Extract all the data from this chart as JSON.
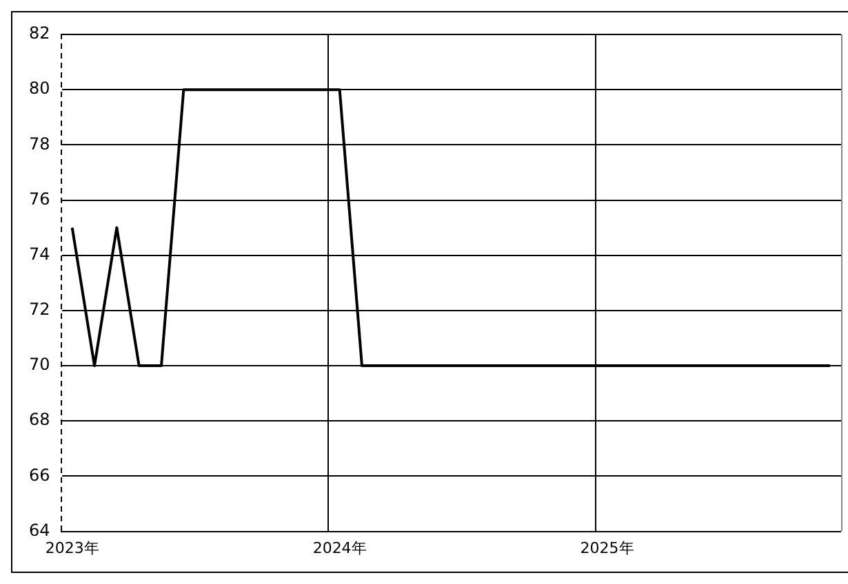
{
  "chart_data": {
    "type": "line",
    "categories": [
      "2023年",
      null,
      null,
      null,
      null,
      null,
      null,
      null,
      null,
      null,
      null,
      null,
      "2024年",
      null,
      null,
      null,
      null,
      null,
      null,
      null,
      null,
      null,
      null,
      null,
      "2025年",
      null,
      null,
      null,
      null,
      null,
      null,
      null,
      null,
      null,
      null
    ],
    "series": [
      {
        "color": "#000000",
        "values": [
          75,
          70,
          75,
          70,
          70,
          80,
          80,
          80,
          80,
          80,
          80,
          80,
          80,
          70,
          70,
          70,
          70,
          70,
          70,
          70,
          70,
          70,
          70,
          70,
          70,
          70,
          70,
          70,
          70,
          70,
          70,
          70,
          70,
          70,
          70
        ]
      }
    ],
    "ylim": [
      64,
      82
    ],
    "yticks": [
      64,
      66,
      68,
      70,
      72,
      74,
      76,
      78,
      80,
      82
    ],
    "grid": true,
    "legend": false,
    "marker": "none",
    "line_style": "solid"
  }
}
